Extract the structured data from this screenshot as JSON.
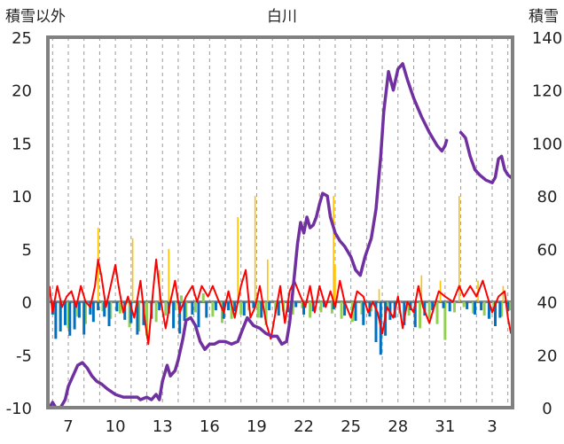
{
  "chart_data": {
    "type": "line",
    "title": "白川",
    "ylabel_left": "積雪以外",
    "ylabel_right": "積雪",
    "xtick_labels": [
      "7",
      "10",
      "13",
      "16",
      "19",
      "22",
      "25",
      "28",
      "31",
      "3"
    ],
    "xtick_days": [
      7,
      10,
      13,
      16,
      19,
      22,
      25,
      28,
      31,
      34
    ],
    "x_range_days": [
      5.7,
      35.3
    ],
    "ylim_left": [
      -10,
      25
    ],
    "yticks_left": [
      "25",
      "20",
      "15",
      "10",
      "5",
      "0",
      "-5",
      "-10"
    ],
    "ylim_right": [
      0,
      140
    ],
    "yticks_right": [
      "140",
      "120",
      "100",
      "80",
      "60",
      "40",
      "20",
      "0"
    ],
    "grid": true,
    "colors": {
      "snow_depth": "#7030a0",
      "temperature": "#ff0000",
      "precip_positive": "#ffc000",
      "precip_negative": "#0070c0",
      "light_negative": "#92d050",
      "zero_line": "#808080",
      "frame": "#808080"
    },
    "snow_depth": {
      "axis": "right",
      "segments": [
        [
          [
            5.8,
            0
          ],
          [
            6.0,
            2
          ],
          [
            6.2,
            0
          ],
          [
            6.5,
            0
          ],
          [
            6.8,
            3
          ],
          [
            7.0,
            8
          ],
          [
            7.3,
            12
          ],
          [
            7.6,
            16
          ],
          [
            7.9,
            17
          ],
          [
            8.2,
            15
          ],
          [
            8.5,
            12
          ],
          [
            8.8,
            10
          ],
          [
            9.1,
            9
          ],
          [
            9.5,
            7
          ],
          [
            10.0,
            5
          ],
          [
            10.5,
            4
          ],
          [
            11.0,
            4
          ],
          [
            11.4,
            4
          ],
          [
            11.6,
            3
          ],
          [
            12.0,
            4
          ],
          [
            12.3,
            3
          ],
          [
            12.6,
            5
          ],
          [
            12.8,
            3
          ],
          [
            13.0,
            10
          ],
          [
            13.3,
            16
          ],
          [
            13.5,
            12
          ],
          [
            13.8,
            14
          ],
          [
            14.0,
            18
          ],
          [
            14.3,
            26
          ],
          [
            14.5,
            33
          ],
          [
            14.8,
            34
          ],
          [
            15.1,
            31
          ],
          [
            15.4,
            25
          ],
          [
            15.7,
            22
          ],
          [
            16.0,
            24
          ],
          [
            16.3,
            24
          ],
          [
            16.6,
            25
          ],
          [
            17.0,
            25
          ],
          [
            17.4,
            24
          ],
          [
            17.8,
            25
          ],
          [
            18.0,
            28
          ],
          [
            18.4,
            34
          ],
          [
            18.8,
            31
          ],
          [
            19.2,
            30
          ],
          [
            19.6,
            28
          ],
          [
            20.0,
            27
          ],
          [
            20.3,
            27
          ],
          [
            20.6,
            24
          ],
          [
            20.9,
            25
          ],
          [
            21.1,
            32
          ],
          [
            21.3,
            44
          ],
          [
            21.6,
            62
          ],
          [
            21.8,
            70
          ],
          [
            22.0,
            66
          ],
          [
            22.2,
            72
          ],
          [
            22.4,
            68
          ],
          [
            22.6,
            69
          ],
          [
            22.8,
            72
          ],
          [
            23.0,
            77
          ],
          [
            23.2,
            81
          ],
          [
            23.5,
            80
          ],
          [
            23.7,
            72
          ],
          [
            24.0,
            66
          ],
          [
            24.3,
            63
          ],
          [
            24.6,
            61
          ],
          [
            25.0,
            57
          ],
          [
            25.3,
            52
          ],
          [
            25.6,
            50
          ],
          [
            25.9,
            57
          ],
          [
            26.3,
            64
          ],
          [
            26.6,
            75
          ],
          [
            26.9,
            95
          ],
          [
            27.1,
            112
          ],
          [
            27.4,
            127
          ],
          [
            27.7,
            120
          ],
          [
            28.0,
            128
          ],
          [
            28.3,
            130
          ],
          [
            28.6,
            124
          ],
          [
            29.0,
            117
          ],
          [
            29.5,
            110
          ],
          [
            30.0,
            104
          ],
          [
            30.5,
            99
          ],
          [
            30.8,
            97
          ],
          [
            31.0,
            99
          ],
          [
            31.1,
            101
          ]
        ],
        [
          [
            32.0,
            104
          ],
          [
            32.3,
            102
          ],
          [
            32.6,
            95
          ],
          [
            32.9,
            90
          ],
          [
            33.2,
            88
          ],
          [
            33.6,
            86
          ],
          [
            34.0,
            85
          ],
          [
            34.2,
            87
          ],
          [
            34.4,
            94
          ],
          [
            34.6,
            95
          ],
          [
            34.8,
            90
          ],
          [
            35.0,
            88
          ],
          [
            35.2,
            87
          ]
        ]
      ]
    },
    "temperature": {
      "axis": "left",
      "points": [
        [
          5.8,
          1.5
        ],
        [
          6.0,
          -1
        ],
        [
          6.3,
          1.5
        ],
        [
          6.6,
          -0.5
        ],
        [
          6.9,
          0.5
        ],
        [
          7.2,
          1
        ],
        [
          7.5,
          -0.5
        ],
        [
          7.8,
          1.5
        ],
        [
          8.1,
          0
        ],
        [
          8.4,
          -0.5
        ],
        [
          8.7,
          1.5
        ],
        [
          8.9,
          4
        ],
        [
          9.1,
          2.5
        ],
        [
          9.4,
          -0.5
        ],
        [
          9.7,
          1.5
        ],
        [
          10.0,
          3.5
        ],
        [
          10.2,
          1.5
        ],
        [
          10.5,
          -1
        ],
        [
          10.8,
          0.5
        ],
        [
          11.2,
          -1.5
        ],
        [
          11.6,
          2
        ],
        [
          11.9,
          -2
        ],
        [
          12.1,
          -4
        ],
        [
          12.4,
          1
        ],
        [
          12.6,
          4
        ],
        [
          12.9,
          0
        ],
        [
          13.2,
          -2.5
        ],
        [
          13.5,
          0
        ],
        [
          13.8,
          2
        ],
        [
          14.1,
          -1
        ],
        [
          14.5,
          0.5
        ],
        [
          14.9,
          1.5
        ],
        [
          15.2,
          0
        ],
        [
          15.5,
          1.5
        ],
        [
          15.9,
          0.5
        ],
        [
          16.2,
          1.5
        ],
        [
          16.6,
          0
        ],
        [
          16.9,
          -1
        ],
        [
          17.2,
          1
        ],
        [
          17.6,
          -1.5
        ],
        [
          18.0,
          1.5
        ],
        [
          18.3,
          3
        ],
        [
          18.6,
          -1.5
        ],
        [
          18.9,
          -0.5
        ],
        [
          19.2,
          1.5
        ],
        [
          19.6,
          -2
        ],
        [
          19.9,
          -3.5
        ],
        [
          20.2,
          -1
        ],
        [
          20.5,
          1.5
        ],
        [
          20.8,
          -2
        ],
        [
          21.1,
          1
        ],
        [
          21.4,
          2
        ],
        [
          21.8,
          0.5
        ],
        [
          22.1,
          -0.5
        ],
        [
          22.4,
          1.5
        ],
        [
          22.7,
          -1
        ],
        [
          23.0,
          1.5
        ],
        [
          23.4,
          -0.5
        ],
        [
          23.7,
          1
        ],
        [
          24.0,
          -0.5
        ],
        [
          24.3,
          2
        ],
        [
          24.6,
          0
        ],
        [
          25.0,
          -1.5
        ],
        [
          25.4,
          1
        ],
        [
          25.8,
          0.5
        ],
        [
          26.1,
          -1
        ],
        [
          26.4,
          0
        ],
        [
          26.7,
          -1
        ],
        [
          27.0,
          -3
        ],
        [
          27.3,
          -0.5
        ],
        [
          27.7,
          -1.5
        ],
        [
          28.0,
          0.5
        ],
        [
          28.3,
          -2.5
        ],
        [
          28.6,
          0
        ],
        [
          29.0,
          -1
        ],
        [
          29.3,
          1.5
        ],
        [
          29.6,
          -0.5
        ],
        [
          30.0,
          -2
        ],
        [
          30.3,
          -0.5
        ],
        [
          30.6,
          1
        ],
        [
          31.0,
          0.5
        ],
        [
          31.5,
          0
        ],
        [
          31.9,
          1.5
        ],
        [
          32.2,
          0.5
        ],
        [
          32.6,
          1.5
        ],
        [
          33.0,
          0.5
        ],
        [
          33.4,
          2
        ],
        [
          33.7,
          0.5
        ],
        [
          34.0,
          -1
        ],
        [
          34.4,
          0.5
        ],
        [
          34.8,
          1
        ],
        [
          35.0,
          -1.5
        ],
        [
          35.2,
          -3
        ]
      ]
    },
    "light_bars": {
      "axis": "left",
      "points": [
        [
          6.1,
          -1.2
        ],
        [
          6.5,
          -1.8
        ],
        [
          7.0,
          -2.5
        ],
        [
          7.6,
          -1.4
        ],
        [
          8.1,
          -2.1
        ],
        [
          9.2,
          -0.9
        ],
        [
          9.7,
          -1.6
        ],
        [
          10.3,
          -1.1
        ],
        [
          10.9,
          -2.4
        ],
        [
          11.5,
          -2.8
        ],
        [
          12.0,
          -3.2
        ],
        [
          12.6,
          -1.9
        ],
        [
          13.2,
          -1.3
        ],
        [
          13.8,
          -0.8
        ],
        [
          14.2,
          0.6
        ],
        [
          14.5,
          -1.5
        ],
        [
          15.1,
          -1.0
        ],
        [
          15.6,
          0.8
        ],
        [
          16.2,
          -1.4
        ],
        [
          16.8,
          -2.0
        ],
        [
          17.4,
          -1.6
        ],
        [
          18.0,
          -1.2
        ],
        [
          18.5,
          -0.8
        ],
        [
          19.1,
          -1.5
        ],
        [
          19.6,
          -2.2
        ],
        [
          20.2,
          -1.1
        ],
        [
          20.7,
          -0.9
        ],
        [
          21.3,
          -1.2
        ],
        [
          21.9,
          -0.6
        ],
        [
          22.4,
          -1.5
        ],
        [
          23.1,
          -1.0
        ],
        [
          23.8,
          -1.1
        ],
        [
          24.4,
          -1.6
        ],
        [
          25.1,
          -1.9
        ],
        [
          25.7,
          -1.2
        ],
        [
          26.3,
          -0.9
        ],
        [
          27.3,
          -0.8
        ],
        [
          28.1,
          -1.1
        ],
        [
          28.7,
          -1.3
        ],
        [
          29.4,
          -2.5
        ],
        [
          30.0,
          -1.6
        ],
        [
          30.5,
          -2.1
        ],
        [
          31.0,
          -3.6
        ],
        [
          31.6,
          -1.0
        ],
        [
          32.2,
          -0.5
        ],
        [
          32.8,
          -1.1
        ],
        [
          33.5,
          -1.3
        ],
        [
          34.1,
          -0.9
        ],
        [
          34.6,
          -1.4
        ],
        [
          35.1,
          -0.8
        ]
      ]
    },
    "precip_bars": {
      "axis": "left",
      "points": [
        [
          6.0,
          -1.2
        ],
        [
          6.2,
          -3.5
        ],
        [
          6.5,
          -2.8
        ],
        [
          6.8,
          -2.2
        ],
        [
          7.1,
          -3.2
        ],
        [
          7.4,
          -2.6
        ],
        [
          7.7,
          -1.5
        ],
        [
          8.0,
          -3.1
        ],
        [
          8.4,
          -1.2
        ],
        [
          8.6,
          -1.9
        ],
        [
          8.9,
          -0.8
        ],
        [
          9.3,
          -1.4
        ],
        [
          9.6,
          -2.3
        ],
        [
          10.1,
          -0.9
        ],
        [
          10.6,
          -1.7
        ],
        [
          11.0,
          -2.0
        ],
        [
          11.4,
          -3.1
        ],
        [
          11.8,
          -2.2
        ],
        [
          12.3,
          -1.6
        ],
        [
          12.8,
          -0.8
        ],
        [
          13.4,
          -1.1
        ],
        [
          13.7,
          -2.5
        ],
        [
          14.1,
          -3.0
        ],
        [
          14.4,
          -1.8
        ],
        [
          14.9,
          -1.2
        ],
        [
          15.3,
          -2.4
        ],
        [
          15.8,
          -1.5
        ],
        [
          16.4,
          -0.8
        ],
        [
          16.9,
          -1.6
        ],
        [
          17.2,
          -0.8
        ],
        [
          17.6,
          -0.9
        ],
        [
          18.2,
          -1.3
        ],
        [
          18.8,
          -0.6
        ],
        [
          19.3,
          -1.5
        ],
        [
          19.8,
          -0.8
        ],
        [
          20.4,
          -1.3
        ],
        [
          21.0,
          -1.0
        ],
        [
          21.5,
          -0.5
        ],
        [
          22.0,
          -1.2
        ],
        [
          22.6,
          -0.9
        ],
        [
          23.3,
          -0.5
        ],
        [
          23.9,
          -0.7
        ],
        [
          24.6,
          -1.3
        ],
        [
          25.3,
          -1.8
        ],
        [
          25.8,
          -2.2
        ],
        [
          26.2,
          -1.4
        ],
        [
          26.6,
          -3.8
        ],
        [
          26.9,
          -5.0
        ],
        [
          27.2,
          -3.2
        ],
        [
          27.5,
          -1.7
        ],
        [
          27.8,
          -1.5
        ],
        [
          28.4,
          -2.2
        ],
        [
          28.8,
          -0.8
        ],
        [
          29.1,
          -2.4
        ],
        [
          29.7,
          -1.3
        ],
        [
          30.2,
          -0.8
        ],
        [
          30.9,
          -0.6
        ],
        [
          31.3,
          -0.9
        ],
        [
          32.4,
          -0.7
        ],
        [
          32.9,
          -1.2
        ],
        [
          33.3,
          -0.8
        ],
        [
          33.8,
          -1.6
        ],
        [
          34.2,
          -2.3
        ],
        [
          34.5,
          -1.5
        ],
        [
          35.0,
          -0.9
        ]
      ]
    },
    "spikes": {
      "axis": "left",
      "points": [
        [
          8.9,
          7
        ],
        [
          11.1,
          6
        ],
        [
          12.8,
          3
        ],
        [
          13.4,
          5
        ],
        [
          17.8,
          8
        ],
        [
          18.9,
          10
        ],
        [
          19.7,
          4
        ],
        [
          23.9,
          10
        ],
        [
          24.0,
          3.5
        ],
        [
          26.8,
          1.2
        ],
        [
          29.5,
          2.5
        ],
        [
          30.7,
          2
        ],
        [
          31.9,
          10
        ],
        [
          33.1,
          2
        ],
        [
          34.7,
          1.5
        ]
      ]
    }
  }
}
